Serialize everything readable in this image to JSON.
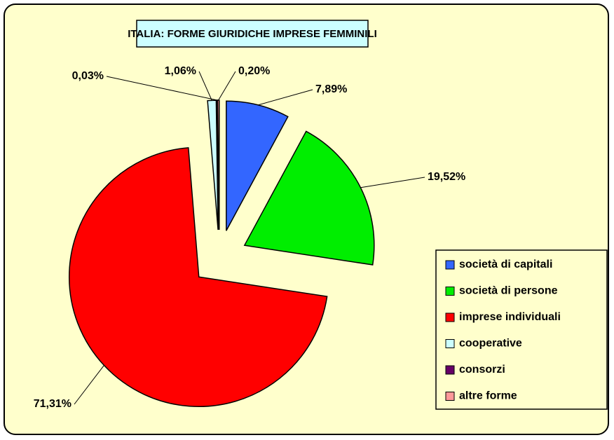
{
  "chart_data": {
    "type": "pie",
    "title": "ITALIA: FORME GIURIDICHE IMPRESE FEMMINILI",
    "categories": [
      "società di capitali",
      "società di persone",
      "imprese individuali",
      "cooperative",
      "consorzi",
      "altre forme"
    ],
    "values": [
      7.89,
      19.52,
      71.31,
      1.06,
      0.03,
      0.2
    ],
    "value_labels": [
      "7,89%",
      "19,52%",
      "71,31%",
      "1,06%",
      "0,03%",
      "0,20%"
    ],
    "colors": [
      "#3366ff",
      "#00ee00",
      "#ff0000",
      "#ccffff",
      "#660066",
      "#ff9999"
    ],
    "exploded": true
  }
}
